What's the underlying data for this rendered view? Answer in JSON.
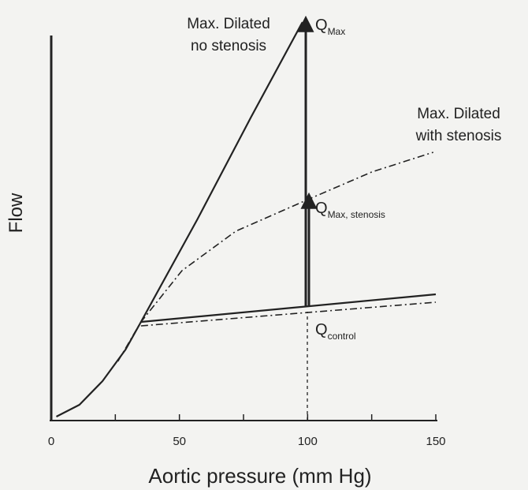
{
  "chart_data": {
    "type": "line",
    "x_label": "Aortic pressure (mm Hg)",
    "y_label": "Flow",
    "xlim": [
      0,
      150
    ],
    "xticks": [
      0,
      50,
      100,
      150
    ],
    "xminor_ticks": [
      25,
      75,
      125
    ],
    "ylim": [
      0,
      104
    ],
    "series": [
      {
        "color": "#222222",
        "style": "solid",
        "x": [
          2,
          11,
          20,
          29,
          35,
          57,
          78,
          98
        ],
        "values": [
          1,
          4,
          10,
          18,
          25,
          51,
          77,
          101
        ]
      },
      {
        "color": "#222222",
        "style": "dashdot",
        "x": [
          26,
          35,
          51,
          72,
          100,
          125,
          149
        ],
        "values": [
          15,
          25,
          38,
          48,
          56,
          63,
          68
        ]
      },
      {
        "color": "#222222",
        "style": "solid",
        "x": [
          35,
          150
        ],
        "values": [
          25,
          32
        ]
      },
      {
        "color": "#222222",
        "style": "dashdot",
        "x": [
          35,
          150
        ],
        "values": [
          24,
          30
        ]
      }
    ],
    "annotations": [
      {
        "lines": [
          "Max. Dilated",
          "no stenosis"
        ]
      },
      {
        "text": "Q",
        "sub": "Max"
      },
      {
        "lines": [
          "Max. Dilated",
          "with stenosis"
        ]
      },
      {
        "text": "Q",
        "sub": "Max, stenosis"
      },
      {
        "text": "Q",
        "sub": "control"
      }
    ]
  }
}
